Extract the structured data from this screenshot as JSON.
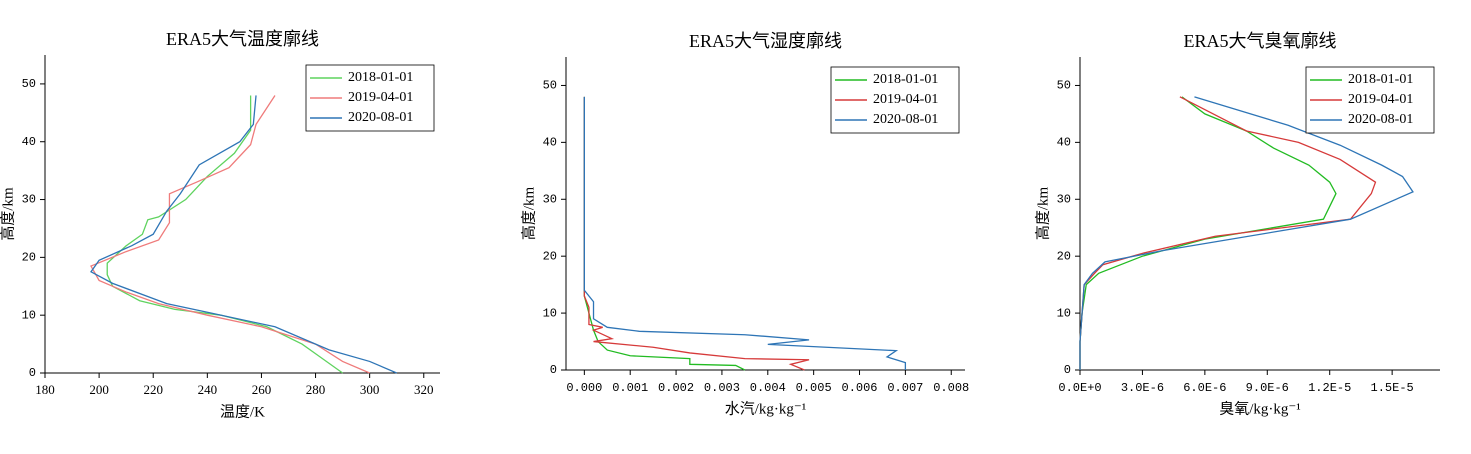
{
  "chart_data": [
    {
      "type": "line",
      "title": "ERA5大气温度廓线",
      "x_label": "温度/K",
      "y_label": "高度/km",
      "xlim": [
        180,
        326
      ],
      "xticks": [
        180,
        200,
        220,
        240,
        260,
        280,
        300,
        320
      ],
      "ylim": [
        0,
        55
      ],
      "yticks": [
        0,
        10,
        20,
        30,
        40,
        50
      ],
      "legend": "upper right",
      "series": [
        {
          "name": "2018-01-01",
          "color": "#5fd35f",
          "x": [
            290,
            281,
            275,
            262,
            245,
            228,
            215,
            205,
            203,
            203,
            210,
            216,
            218,
            222,
            232,
            234,
            240,
            250,
            256,
            256
          ],
          "y": [
            0,
            3,
            5,
            8,
            10,
            11,
            12.5,
            15,
            17,
            19,
            22,
            24,
            26.5,
            27,
            30,
            31,
            34,
            38,
            42,
            48
          ]
        },
        {
          "name": "2019-04-01",
          "color": "#ef7b7b",
          "x": [
            300,
            290,
            280,
            260,
            240,
            222,
            210,
            200,
            197,
            210,
            222,
            226,
            226,
            236,
            248,
            256,
            258,
            265
          ],
          "y": [
            0,
            2,
            5,
            8,
            10,
            12,
            14,
            16,
            18.5,
            21,
            23,
            26,
            31,
            33,
            35.5,
            39.5,
            43,
            48
          ]
        },
        {
          "name": "2020-08-01",
          "color": "#2e75b6",
          "x": [
            310,
            300,
            285,
            265,
            240,
            225,
            205,
            199,
            197,
            200,
            212,
            220,
            225,
            230,
            237,
            252,
            257,
            258
          ],
          "y": [
            0,
            2,
            4,
            8,
            10.5,
            12,
            15.5,
            17,
            17.5,
            19.5,
            22,
            24,
            28,
            31,
            36,
            40,
            43,
            48
          ]
        }
      ]
    },
    {
      "type": "line",
      "title": "ERA5大气湿度廓线",
      "x_label": "水汽/kg·kg⁻¹",
      "y_label": "高度/km",
      "xlim": [
        -0.0004,
        0.0083
      ],
      "xticks": [
        {
          "value": 0,
          "label": "0.000"
        },
        0.001,
        0.002,
        0.003,
        0.004,
        0.005,
        0.006,
        0.007,
        {
          "value": 0.008,
          "label": "0.008"
        }
      ],
      "ylim": [
        0,
        55
      ],
      "yticks": [
        0,
        10,
        20,
        30,
        40,
        50
      ],
      "legend": "upper right",
      "series": [
        {
          "name": "2018-01-01",
          "color": "#22bb22",
          "x": [
            0.0035,
            0.0033,
            0.0023,
            0.0023,
            0.001,
            0.0005,
            0.0003,
            0.0002,
            0.0001,
            0,
            0
          ],
          "y": [
            0,
            0.8,
            1,
            2,
            2.5,
            3.5,
            5,
            7,
            10,
            13,
            48
          ]
        },
        {
          "name": "2019-04-01",
          "color": "#d63a3a",
          "x": [
            0.0048,
            0.0045,
            0.0049,
            0.0035,
            0.0023,
            0.0015,
            0.0002,
            0.0006,
            0.0002,
            0.0004,
            0.0001,
            0.0001,
            0,
            0
          ],
          "y": [
            0,
            1,
            1.8,
            2,
            3,
            4,
            5,
            5.5,
            7,
            7.5,
            8,
            11,
            13,
            48
          ]
        },
        {
          "name": "2020-08-01",
          "color": "#2e75b6",
          "x": [
            0.007,
            0.007,
            0.0066,
            0.0068,
            0.004,
            0.0049,
            0.0035,
            0.0012,
            0.0005,
            0.0002,
            0.0002,
            0,
            0
          ],
          "y": [
            0,
            1.3,
            2.3,
            3.4,
            4.5,
            5.3,
            6.2,
            6.8,
            7.5,
            9,
            12,
            14,
            48
          ]
        }
      ]
    },
    {
      "type": "line",
      "title": "ERA5大气臭氧廓线",
      "x_label": "臭氧/kg·kg⁻¹",
      "y_label": "高度/km",
      "xlim": [
        0,
        1.73e-05
      ],
      "xticks": [
        {
          "value": 0,
          "label": "0.0E+0"
        },
        {
          "value": 3e-06,
          "label": "3.0E-6"
        },
        {
          "value": 6e-06,
          "label": "6.0E-6"
        },
        {
          "value": 9e-06,
          "label": "9.0E-6"
        },
        {
          "value": 1.2e-05,
          "label": "1.2E-5"
        },
        {
          "value": 1.5e-05,
          "label": "1.5E-5"
        }
      ],
      "ylim": [
        0,
        55
      ],
      "yticks": [
        0,
        10,
        20,
        30,
        40,
        50
      ],
      "legend": "upper right",
      "series": [
        {
          "name": "2018-01-01",
          "color": "#22bb22",
          "x": [
            0,
            0,
            1e-07,
            3e-07,
            9e-07,
            3e-06,
            6e-06,
            1.17e-05,
            1.23e-05,
            1.2e-05,
            1.1e-05,
            9.3e-06,
            8e-06,
            6e-06,
            4.9e-06
          ],
          "y": [
            0,
            5,
            10,
            15,
            17,
            20,
            23,
            26.5,
            31,
            33,
            36,
            39,
            42,
            45,
            48
          ]
        },
        {
          "name": "2019-04-01",
          "color": "#d63a3a",
          "x": [
            0,
            0,
            1e-07,
            2e-07,
            7e-07,
            1.1e-06,
            3e-06,
            6.5e-06,
            1.3e-05,
            1.4e-05,
            1.42e-05,
            1.25e-05,
            1.05e-05,
            8e-06,
            4.8e-06
          ],
          "y": [
            0,
            5,
            10,
            15,
            17,
            18.5,
            20.5,
            23.5,
            26.5,
            31,
            33,
            37,
            40,
            42,
            48
          ]
        },
        {
          "name": "2020-08-01",
          "color": "#2e75b6",
          "x": [
            0,
            0,
            1e-07,
            2e-07,
            6e-07,
            1.2e-06,
            4e-06,
            1.3e-05,
            1.6e-05,
            1.55e-05,
            1.45e-05,
            1.25e-05,
            1e-05,
            5.5e-06
          ],
          "y": [
            0,
            5,
            10,
            15,
            17,
            19,
            21,
            26.5,
            31.3,
            34,
            36,
            39.5,
            43,
            48
          ]
        }
      ]
    }
  ]
}
